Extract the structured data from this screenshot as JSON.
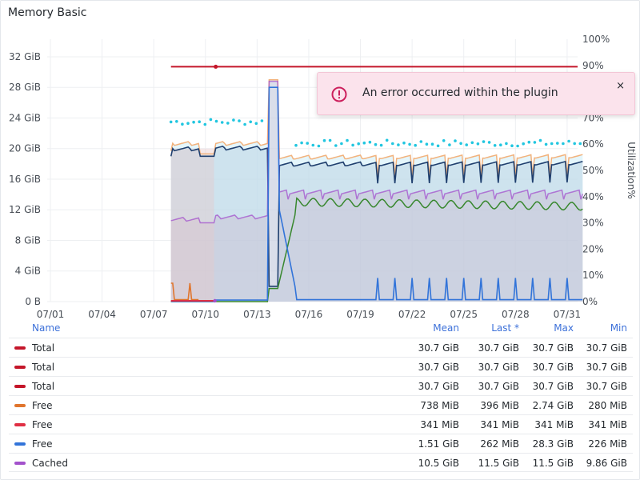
{
  "panel": {
    "title": "Memory Basic"
  },
  "toast": {
    "message": "An error occurred within the plugin",
    "close_glyph": "×",
    "icon": "alert-circle-icon",
    "accent": "#cc1f5c"
  },
  "chart_data": {
    "type": "area",
    "x_ticks": [
      "07/01",
      "07/04",
      "07/07",
      "07/10",
      "07/13",
      "07/16",
      "07/19",
      "07/22",
      "07/25",
      "07/28",
      "07/31"
    ],
    "y_ticks_left": [
      "0 B",
      "4 GiB",
      "8 GiB",
      "12 GiB",
      "16 GiB",
      "20 GiB",
      "24 GiB",
      "28 GiB",
      "32 GiB"
    ],
    "y_ticks_right": [
      "0%",
      "10%",
      "20%",
      "30%",
      "40%",
      "50%",
      "60%",
      "70%",
      "80%",
      "90%",
      "100%"
    ],
    "ylabel_right": "Utilization%",
    "ylim_left_gib": [
      0,
      34.3
    ],
    "ylim_right_pct": [
      0,
      100
    ],
    "x_start": "07/01",
    "series": [
      {
        "name": "Total",
        "color": "#c4162a",
        "constant_gib": 30.7,
        "start": "07/08"
      },
      {
        "name": "Free",
        "color": "#e0752d",
        "approx_gib": [
          0.7,
          0.3,
          2.7
        ]
      },
      {
        "name": "Free",
        "color": "#e02f44",
        "constant_gib": 0.33
      },
      {
        "name": "Free",
        "color": "#3274d9",
        "approx_gib": [
          1.5,
          0.3,
          28.3
        ]
      },
      {
        "name": "Cached",
        "color": "#a352cc",
        "approx_gib": [
          10.5,
          11.5,
          9.9
        ]
      }
    ],
    "annotation_colors": {
      "used_line": "#1f3f6e",
      "used_peak_line": "#f2b27c",
      "utilization_line": "#37872d",
      "utilization_dots": "#21c6e0"
    }
  },
  "legend": {
    "headers": {
      "name": "Name",
      "mean": "Mean",
      "last": "Last *",
      "max": "Max",
      "min": "Min"
    },
    "rows": [
      {
        "name": "Total",
        "color": "#c4162a",
        "mean": "30.7 GiB",
        "last": "30.7 GiB",
        "max": "30.7 GiB",
        "min": "30.7 GiB"
      },
      {
        "name": "Total",
        "color": "#c4162a",
        "mean": "30.7 GiB",
        "last": "30.7 GiB",
        "max": "30.7 GiB",
        "min": "30.7 GiB"
      },
      {
        "name": "Total",
        "color": "#c4162a",
        "mean": "30.7 GiB",
        "last": "30.7 GiB",
        "max": "30.7 GiB",
        "min": "30.7 GiB"
      },
      {
        "name": "Free",
        "color": "#e0752d",
        "mean": "738 MiB",
        "last": "396 MiB",
        "max": "2.74 GiB",
        "min": "280 MiB"
      },
      {
        "name": "Free",
        "color": "#e02f44",
        "mean": "341 MiB",
        "last": "341 MiB",
        "max": "341 MiB",
        "min": "341 MiB"
      },
      {
        "name": "Free",
        "color": "#3274d9",
        "mean": "1.51 GiB",
        "last": "262 MiB",
        "max": "28.3 GiB",
        "min": "226 MiB"
      },
      {
        "name": "Cached",
        "color": "#a352cc",
        "mean": "10.5 GiB",
        "last": "11.5 GiB",
        "max": "11.5 GiB",
        "min": "9.86 GiB"
      }
    ]
  }
}
